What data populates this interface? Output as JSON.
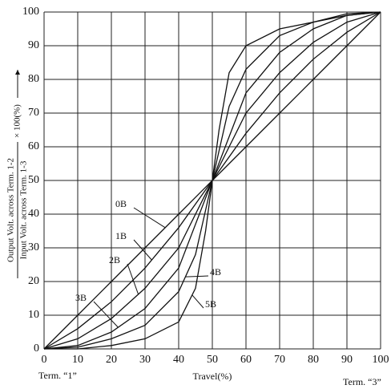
{
  "chart_data": {
    "type": "line",
    "y_label_numerator": "Output Volt. across Term. 1-2",
    "y_label_denominator": "Input Volt. across Term. 1-3",
    "y_label_suffix": "× 100(%)",
    "x_label": "Travel(%)",
    "x_start_label": "Term. “1”",
    "x_end_label": "Term. “3”",
    "xlim": [
      0,
      100
    ],
    "ylim": [
      0,
      100
    ],
    "xticks": [
      0,
      10,
      20,
      30,
      40,
      50,
      60,
      70,
      80,
      90,
      100
    ],
    "yticks": [
      0,
      10,
      20,
      30,
      40,
      50,
      60,
      70,
      80,
      90,
      100
    ],
    "grid": true,
    "series": [
      {
        "name": "0B",
        "color": "#111111",
        "x": [
          0,
          10,
          20,
          30,
          40,
          50,
          60,
          70,
          80,
          90,
          100
        ],
        "values": [
          0,
          10,
          20,
          30,
          40,
          50,
          60,
          70,
          80,
          90,
          100
        ]
      },
      {
        "name": "1B",
        "color": "#111111",
        "x": [
          0,
          10,
          20,
          30,
          40,
          50,
          60,
          70,
          80,
          90,
          100
        ],
        "values": [
          0,
          6,
          14,
          24,
          36,
          50,
          64,
          76,
          86,
          94,
          100
        ]
      },
      {
        "name": "2B",
        "color": "#111111",
        "x": [
          0,
          10,
          20,
          30,
          40,
          50,
          60,
          70,
          80,
          90,
          100
        ],
        "values": [
          0,
          3,
          9,
          18,
          30,
          50,
          70,
          82,
          91,
          97,
          100
        ]
      },
      {
        "name": "3B",
        "color": "#111111",
        "x": [
          0,
          10,
          20,
          30,
          40,
          50,
          60,
          70,
          80,
          90,
          100
        ],
        "values": [
          0,
          1,
          5,
          12,
          24,
          50,
          76,
          88,
          95,
          99,
          100
        ]
      },
      {
        "name": "4B",
        "color": "#111111",
        "x": [
          0,
          10,
          20,
          30,
          40,
          45,
          50,
          55,
          60,
          70,
          80,
          90,
          100
        ],
        "values": [
          0,
          0.5,
          3,
          7,
          17,
          28,
          50,
          72,
          83,
          93,
          97,
          99.5,
          100
        ]
      },
      {
        "name": "5B",
        "color": "#111111",
        "x": [
          0,
          10,
          20,
          30,
          40,
          45,
          48,
          50,
          52,
          55,
          60,
          70,
          80,
          90,
          100
        ],
        "values": [
          0,
          0,
          1,
          3,
          8,
          18,
          35,
          50,
          65,
          82,
          90,
          95,
          97,
          99,
          100
        ]
      }
    ]
  }
}
